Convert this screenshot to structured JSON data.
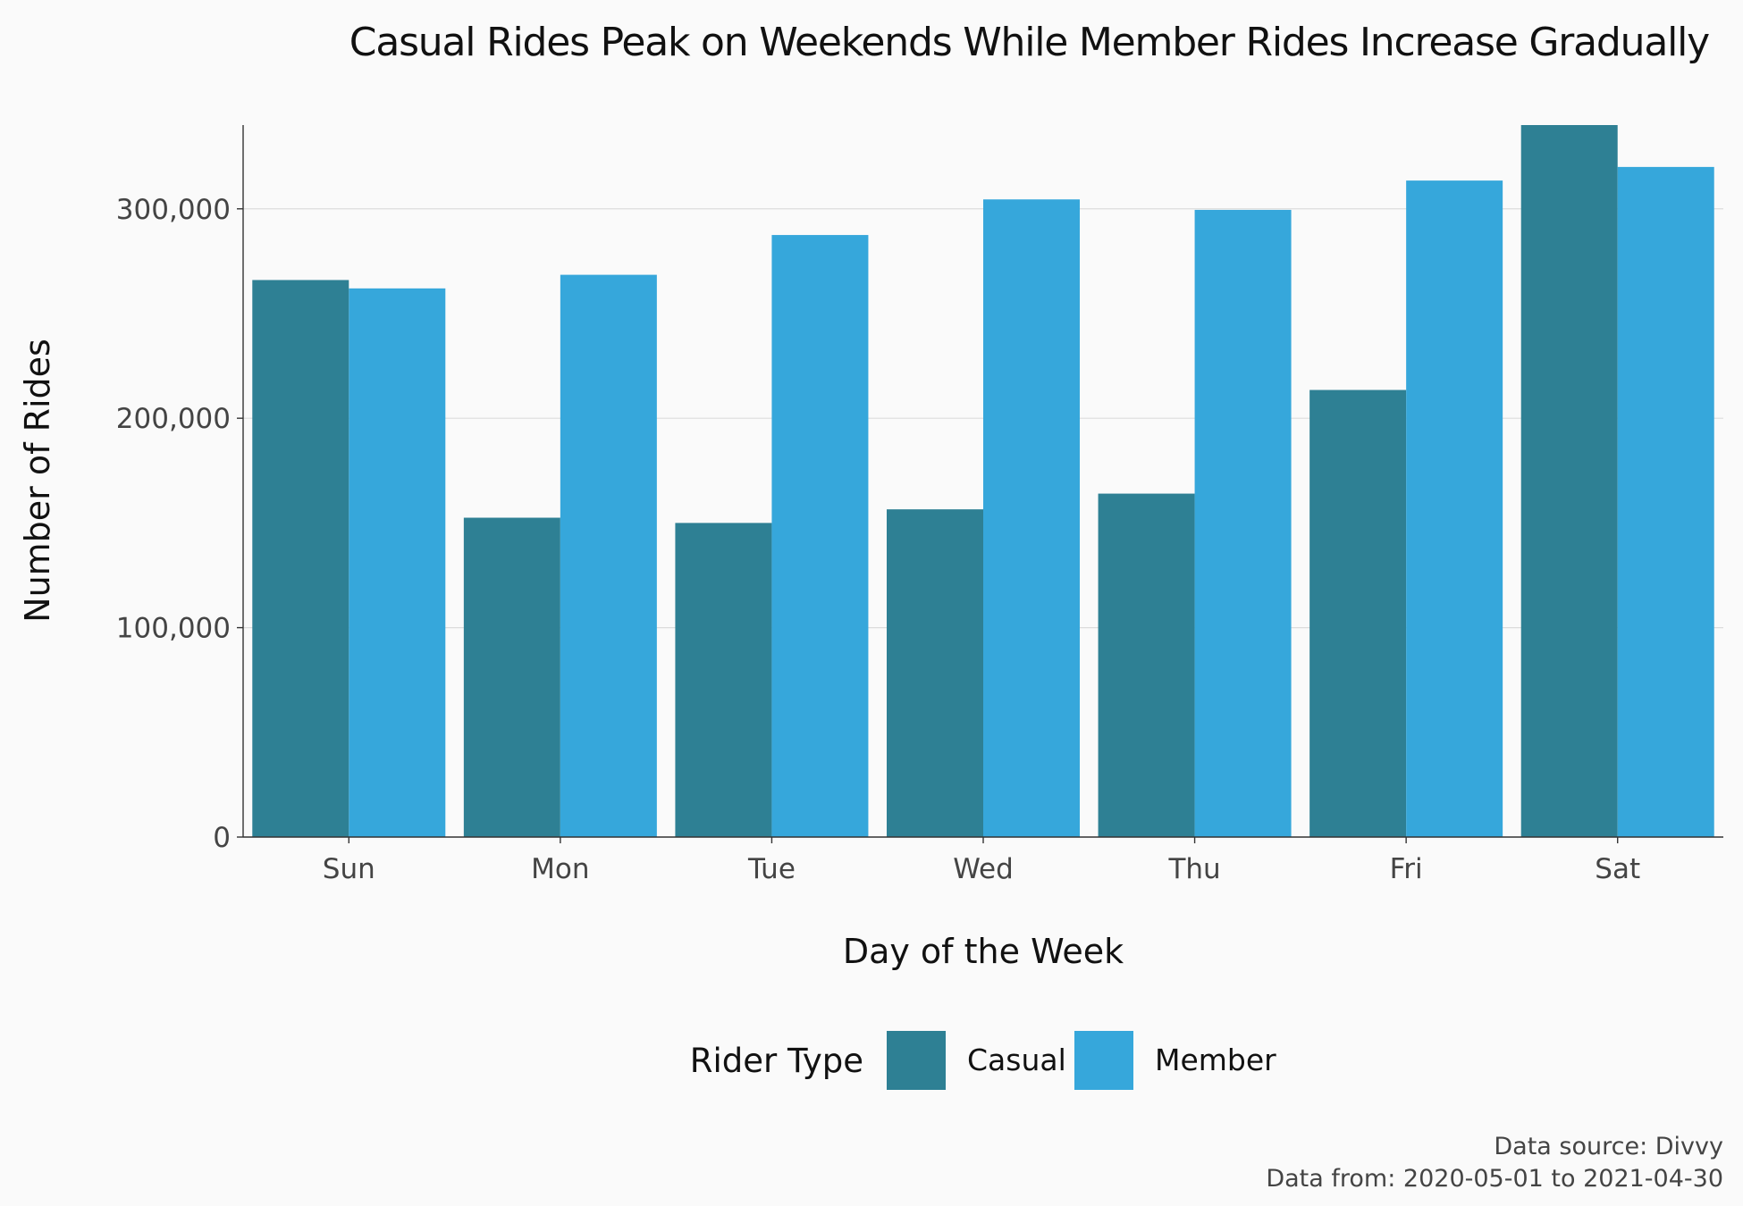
{
  "chart_data": {
    "type": "bar",
    "title": "Casual Rides Peak on Weekends While Member Rides Increase Gradually",
    "xlabel": "Day of the Week",
    "ylabel": "Number of Rides",
    "categories": [
      "Sun",
      "Mon",
      "Tue",
      "Wed",
      "Thu",
      "Fri",
      "Sat"
    ],
    "series": [
      {
        "name": "Casual",
        "color": "#2e8094",
        "values": [
          266000,
          152500,
          150000,
          156500,
          164000,
          213500,
          340000
        ]
      },
      {
        "name": "Member",
        "color": "#36a7db",
        "values": [
          262000,
          268500,
          287500,
          304500,
          299500,
          313500,
          320000
        ]
      }
    ],
    "ylim": [
      0,
      340000
    ],
    "yticks": [
      0,
      100000,
      200000,
      300000
    ],
    "ytick_labels": [
      "0",
      "100,000",
      "200,000",
      "300,000"
    ],
    "grid": "horizontal",
    "legend": {
      "title": "Rider Type",
      "position": "bottom",
      "labels": [
        "Casual",
        "Member"
      ]
    },
    "caption": {
      "line1": "Data source: Divvy",
      "line2": "Data from: 2020-05-01 to 2021-04-30"
    }
  }
}
